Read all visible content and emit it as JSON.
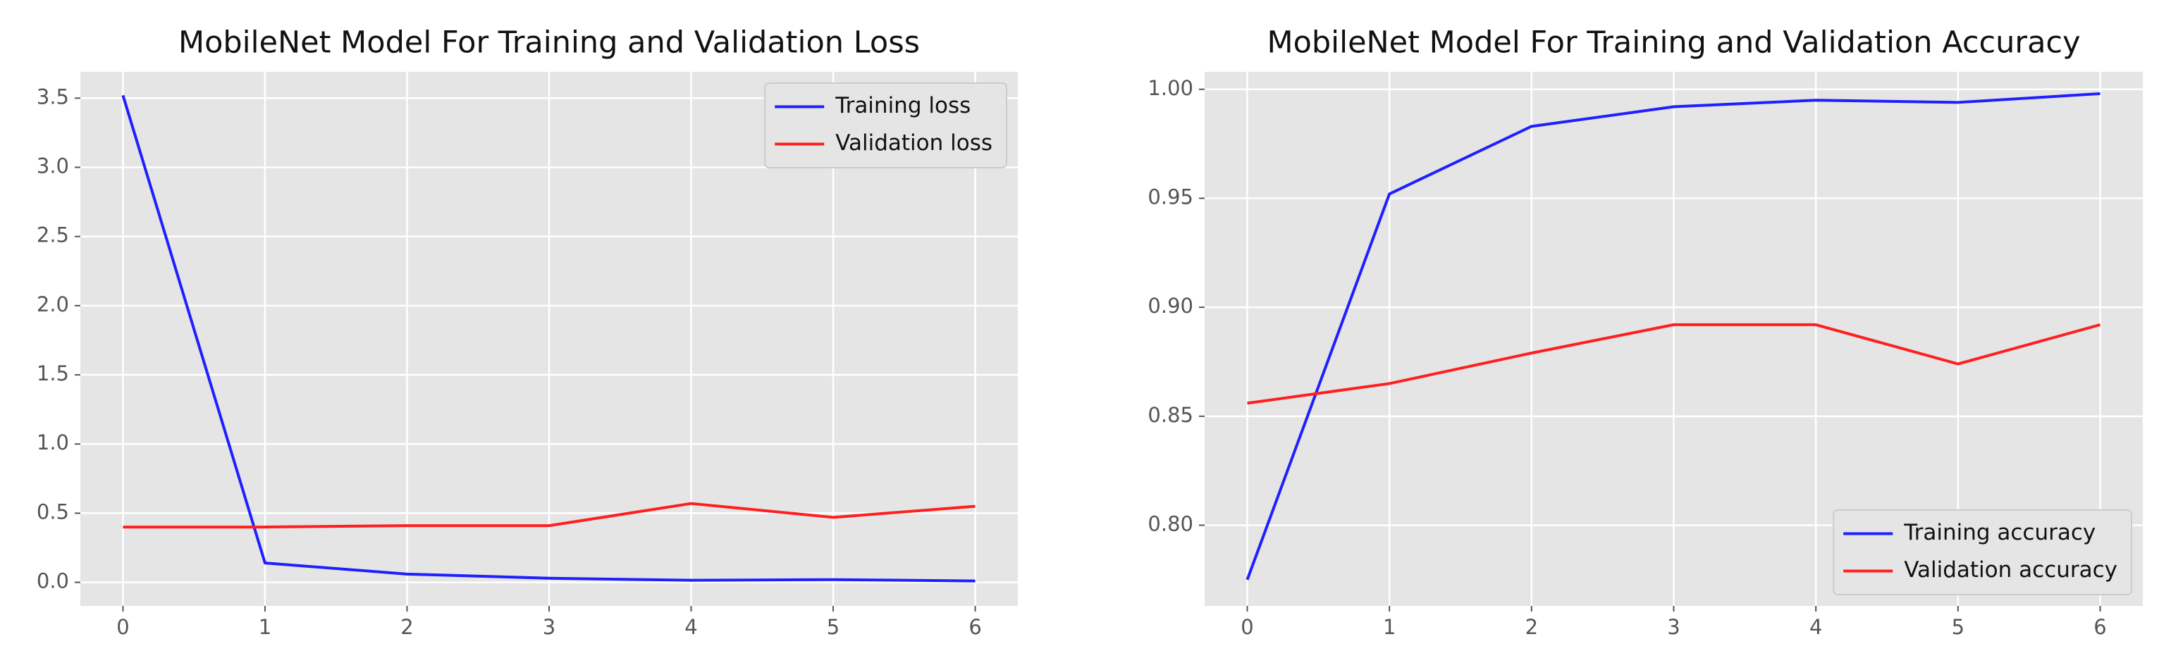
{
  "chart_data": [
    {
      "type": "line",
      "title": "MobileNet Model For Training and Validation Loss",
      "x": [
        0,
        1,
        2,
        3,
        4,
        5,
        6
      ],
      "series": [
        {
          "name": "Training loss",
          "color": "#1f1fff",
          "values": [
            3.52,
            0.14,
            0.06,
            0.03,
            0.015,
            0.02,
            0.01
          ]
        },
        {
          "name": "Validation loss",
          "color": "#ff1f1f",
          "values": [
            0.4,
            0.4,
            0.41,
            0.41,
            0.57,
            0.47,
            0.55
          ]
        }
      ],
      "xlim": [
        -0.3,
        6.3
      ],
      "xticks": [
        0,
        1,
        2,
        3,
        4,
        5,
        6
      ],
      "ylim": [
        -0.17,
        3.69
      ],
      "yticks": [
        {
          "value": 0,
          "label": "0.0"
        },
        0.5,
        {
          "value": 1,
          "label": "1.0"
        },
        1.5,
        {
          "value": 2,
          "label": "2.0"
        },
        2.5,
        {
          "value": 3,
          "label": "3.0"
        },
        3.5
      ],
      "grid": true,
      "legend": "upper right"
    },
    {
      "type": "line",
      "title": "MobileNet Model For Training and Validation Accuracy",
      "x": [
        0,
        1,
        2,
        3,
        4,
        5,
        6
      ],
      "series": [
        {
          "name": "Training accuracy",
          "color": "#1f1fff",
          "values": [
            0.775,
            0.952,
            0.983,
            0.992,
            0.995,
            0.994,
            0.998
          ]
        },
        {
          "name": "Validation accuracy",
          "color": "#ff1f1f",
          "values": [
            0.856,
            0.865,
            0.879,
            0.892,
            0.892,
            0.874,
            0.892
          ]
        }
      ],
      "xlim": [
        -0.3,
        6.3
      ],
      "xticks": [
        0,
        1,
        2,
        3,
        4,
        5,
        6
      ],
      "ylim": [
        0.763,
        1.008
      ],
      "yticks": [
        {
          "value": 0.8,
          "label": "0.80"
        },
        0.85,
        {
          "value": 0.9,
          "label": "0.90"
        },
        0.95,
        {
          "value": 1,
          "label": "1.00"
        }
      ],
      "grid": true,
      "legend": "lower right"
    }
  ]
}
